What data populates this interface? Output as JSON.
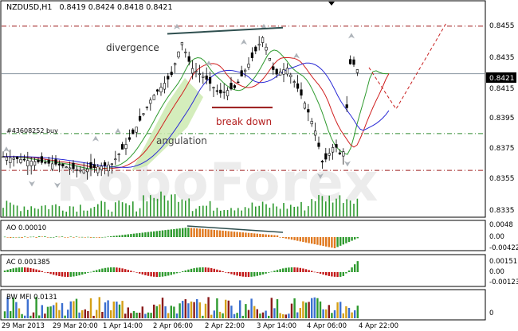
{
  "header": {
    "symbol": "NZDUSD,H1",
    "ohlc": "0.8419 0.8424 0.8418 0.8421"
  },
  "watermark": "RoboForex",
  "annotations": {
    "divergence": "divergence",
    "angulation": "angulation",
    "break_down": "break down",
    "order": "#43608252 buy"
  },
  "price_axis": {
    "ticks": [
      "0.8455",
      "0.8435",
      "0.8415",
      "0.8395",
      "0.8375",
      "0.8355",
      "0.8335"
    ],
    "current": "0.8421"
  },
  "time_axis": {
    "ticks": [
      "29 Mar 2013",
      "29 Mar 20:00",
      "1 Apr 14:00",
      "2 Apr 06:00",
      "2 Apr 22:00",
      "3 Apr 14:00",
      "4 Apr 06:00",
      "4 Apr 22:00"
    ]
  },
  "ao": {
    "label": "AO 0.00010",
    "ticks": [
      "0.0048",
      "0.00",
      "-0.00422"
    ]
  },
  "ac": {
    "label": "AC 0.001385",
    "ticks": [
      "0.00151",
      "0.00",
      "-0.00123"
    ]
  },
  "mfi": {
    "label": "BW MFI 0.0131",
    "ticks": [
      "0"
    ]
  },
  "chart_data": {
    "type": "candlestick",
    "title": "NZDUSD,H1",
    "ylim": [
      0.8328,
      0.8468
    ],
    "levels": [
      0.8452,
      0.8421,
      0.8382,
      0.8358
    ],
    "colors": {
      "ma_green": "#2e9a2e",
      "ma_blue": "#2b2bd6",
      "ma_red": "#d02020",
      "ao_up": "#2e9a2e",
      "ao_down": "#e0781e",
      "ac_down": "#c21818"
    }
  }
}
